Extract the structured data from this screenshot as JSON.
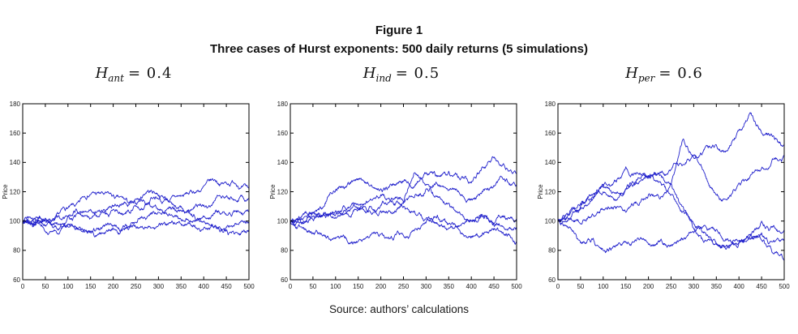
{
  "figure": {
    "label": "Figure 1",
    "title": "Three cases of Hurst exponents: 500 daily returns (5 simulations)",
    "source": "Source: authors’ calculations"
  },
  "style": {
    "line_color": "#2222cc",
    "axis_color": "#000000",
    "tick_label_color": "#1a1a1a"
  },
  "chart_data": [
    {
      "type": "line",
      "title": "H_ant = 0.4",
      "title_parts": {
        "var": "H",
        "sub": "ant",
        "eq": "= 0.4"
      },
      "xlabel": "",
      "ylabel": "Price",
      "xlim": [
        0,
        500
      ],
      "ylim": [
        60,
        180
      ],
      "xticks": [
        0,
        50,
        100,
        150,
        200,
        250,
        300,
        350,
        400,
        450,
        500
      ],
      "yticks": [
        60,
        80,
        100,
        120,
        140,
        160,
        180
      ],
      "grid": false,
      "legend": "none",
      "x_waypoints": [
        0,
        25,
        50,
        75,
        100,
        125,
        150,
        175,
        200,
        225,
        250,
        275,
        300,
        325,
        350,
        375,
        400,
        425,
        450,
        475,
        500
      ],
      "series": [
        {
          "name": "simulation-1",
          "values": [
            100,
            99,
            102,
            105,
            109,
            113,
            118,
            120,
            118,
            115,
            112,
            120,
            117,
            114,
            117,
            119,
            124,
            128,
            126,
            124,
            122
          ]
        },
        {
          "name": "simulation-2",
          "values": [
            100,
            102,
            100,
            104,
            103,
            106,
            108,
            107,
            110,
            113,
            115,
            112,
            115,
            113,
            110,
            108,
            111,
            114,
            117,
            114,
            116
          ]
        },
        {
          "name": "simulation-3",
          "values": [
            100,
            98,
            101,
            99,
            103,
            105,
            102,
            106,
            108,
            105,
            110,
            112,
            108,
            104,
            101,
            99,
            103,
            106,
            104,
            107,
            106
          ]
        },
        {
          "name": "simulation-4",
          "values": [
            100,
            97,
            93,
            92,
            96,
            94,
            92,
            95,
            97,
            96,
            99,
            103,
            106,
            109,
            107,
            103,
            100,
            97,
            96,
            98,
            99
          ]
        },
        {
          "name": "simulation-5",
          "values": [
            100,
            99,
            97,
            95,
            98,
            96,
            93,
            92,
            95,
            94,
            96,
            95,
            97,
            99,
            98,
            96,
            95,
            97,
            94,
            92,
            94
          ]
        }
      ]
    },
    {
      "type": "line",
      "title": "H_ind = 0.5",
      "title_parts": {
        "var": "H",
        "sub": "ind",
        "eq": "= 0.5"
      },
      "xlabel": "",
      "ylabel": "Price",
      "xlim": [
        0,
        500
      ],
      "ylim": [
        60,
        180
      ],
      "xticks": [
        0,
        50,
        100,
        150,
        200,
        250,
        300,
        350,
        400,
        450,
        500
      ],
      "yticks": [
        60,
        80,
        100,
        120,
        140,
        160,
        180
      ],
      "grid": false,
      "legend": "none",
      "x_waypoints": [
        0,
        25,
        50,
        75,
        100,
        125,
        150,
        175,
        200,
        225,
        250,
        275,
        300,
        325,
        350,
        375,
        400,
        425,
        450,
        475,
        500
      ],
      "series": [
        {
          "name": "simulation-1",
          "values": [
            100,
            102,
            106,
            110,
            121,
            124,
            128,
            124,
            122,
            125,
            127,
            124,
            133,
            131,
            134,
            128,
            126,
            137,
            143,
            136,
            132
          ]
        },
        {
          "name": "simulation-2",
          "values": [
            100,
            99,
            103,
            105,
            104,
            108,
            111,
            114,
            118,
            115,
            113,
            117,
            122,
            125,
            121,
            118,
            115,
            120,
            124,
            127,
            125
          ]
        },
        {
          "name": "simulation-3",
          "values": [
            100,
            103,
            106,
            104,
            107,
            105,
            108,
            110,
            107,
            105,
            112,
            133,
            125,
            117,
            112,
            105,
            100,
            104,
            98,
            102,
            101
          ]
        },
        {
          "name": "simulation-4",
          "values": [
            100,
            98,
            101,
            104,
            102,
            106,
            109,
            107,
            111,
            114,
            110,
            106,
            102,
            98,
            95,
            97,
            100,
            103,
            97,
            94,
            96
          ]
        },
        {
          "name": "simulation-5",
          "values": [
            100,
            96,
            92,
            90,
            88,
            87,
            86,
            89,
            91,
            88,
            90,
            94,
            99,
            104,
            98,
            93,
            89,
            92,
            95,
            90,
            86
          ]
        }
      ]
    },
    {
      "type": "line",
      "title": "H_per = 0.6",
      "title_parts": {
        "var": "H",
        "sub": "per",
        "eq": "= 0.6"
      },
      "xlabel": "",
      "ylabel": "Price",
      "xlim": [
        0,
        500
      ],
      "ylim": [
        60,
        180
      ],
      "xticks": [
        0,
        50,
        100,
        150,
        200,
        250,
        300,
        350,
        400,
        450,
        500
      ],
      "yticks": [
        60,
        80,
        100,
        120,
        140,
        160,
        180
      ],
      "grid": false,
      "legend": "none",
      "x_waypoints": [
        0,
        25,
        50,
        75,
        100,
        125,
        150,
        175,
        200,
        225,
        250,
        275,
        300,
        325,
        350,
        375,
        400,
        425,
        450,
        475,
        500
      ],
      "series": [
        {
          "name": "simulation-1",
          "values": [
            100,
            101,
            98,
            104,
            108,
            110,
            106,
            112,
            118,
            115,
            125,
            155,
            143,
            150,
            152,
            148,
            162,
            174,
            160,
            158,
            152
          ]
        },
        {
          "name": "simulation-2",
          "values": [
            100,
            105,
            112,
            118,
            120,
            115,
            122,
            126,
            130,
            133,
            135,
            138,
            145,
            132,
            118,
            115,
            126,
            131,
            136,
            142,
            145
          ]
        },
        {
          "name": "simulation-3",
          "values": [
            100,
            104,
            110,
            116,
            125,
            128,
            137,
            133,
            130,
            131,
            125,
            110,
            95,
            87,
            84,
            83,
            86,
            90,
            100,
            96,
            94
          ]
        },
        {
          "name": "simulation-4",
          "values": [
            100,
            102,
            108,
            114,
            124,
            119,
            122,
            128,
            131,
            127,
            118,
            106,
            98,
            92,
            85,
            82,
            85,
            88,
            92,
            86,
            88
          ]
        },
        {
          "name": "simulation-5",
          "values": [
            100,
            96,
            85,
            88,
            80,
            83,
            86,
            88,
            84,
            86,
            83,
            88,
            92,
            97,
            94,
            88,
            85,
            90,
            87,
            78,
            73
          ]
        }
      ]
    }
  ]
}
